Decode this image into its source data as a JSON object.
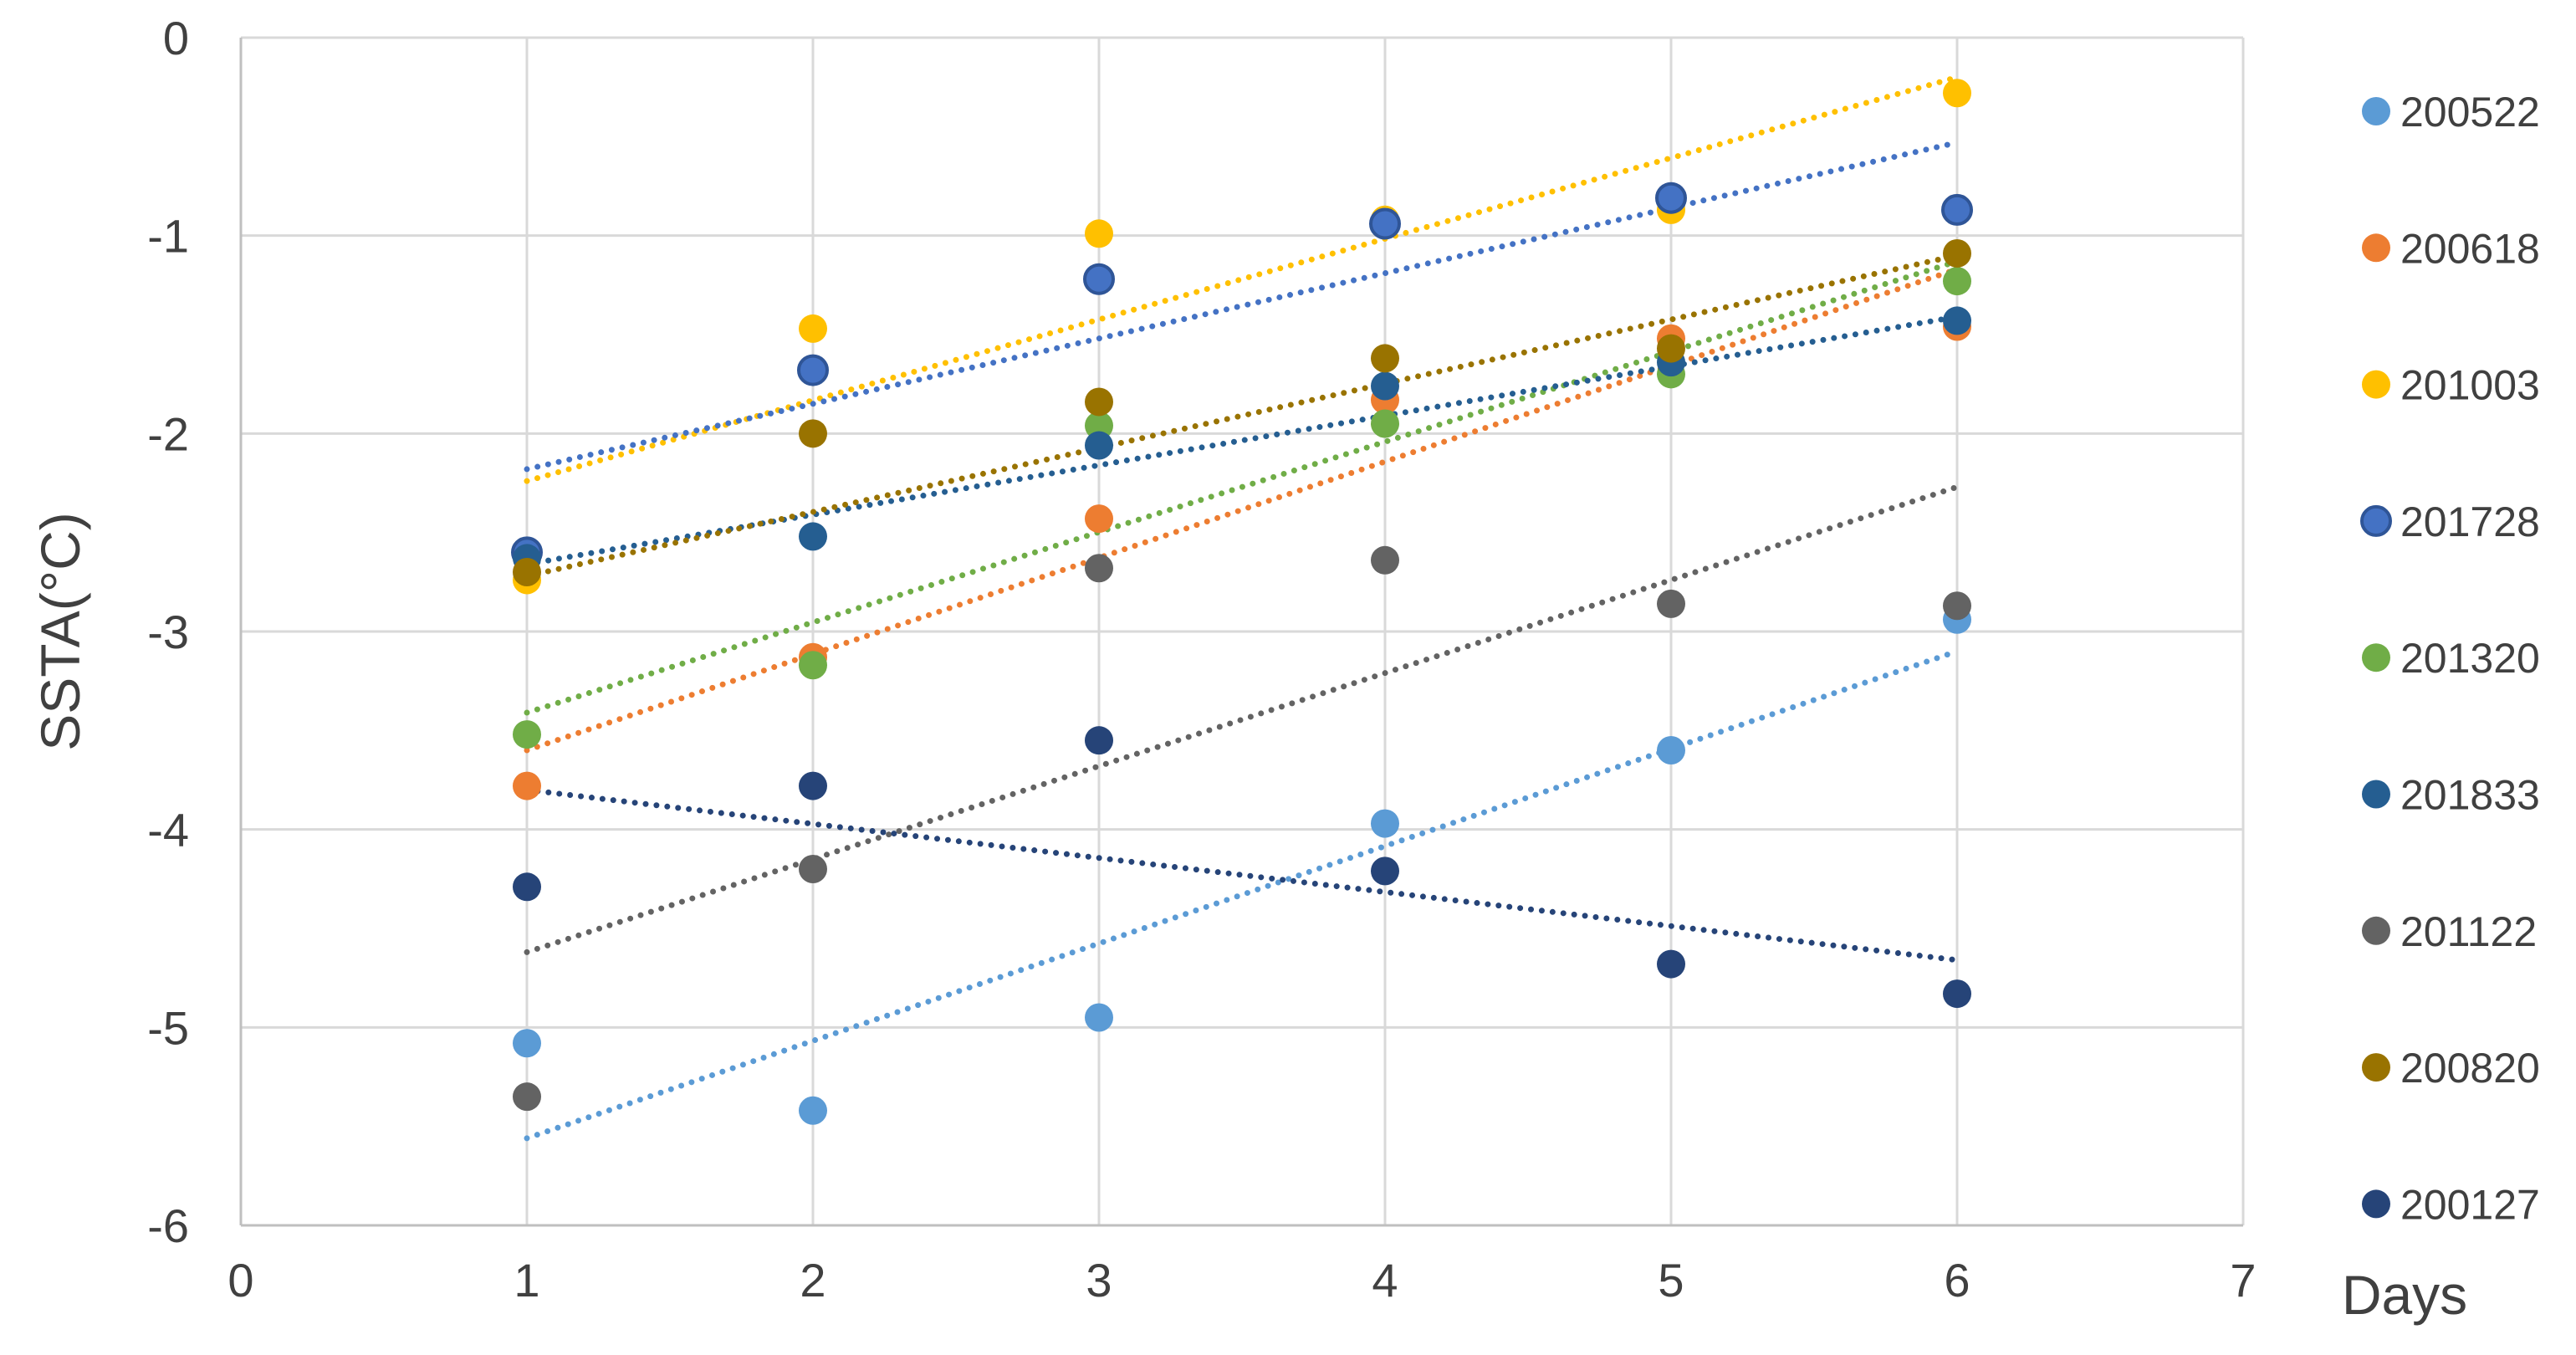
{
  "chart_data": {
    "type": "scatter",
    "title": "",
    "xlabel": "Days",
    "ylabel": "SSTA(°C)",
    "xlim": [
      0,
      7
    ],
    "ylim": [
      -6,
      0
    ],
    "xticks": [
      0,
      1,
      2,
      3,
      4,
      5,
      6,
      7
    ],
    "yticks": [
      0,
      -1,
      -2,
      -3,
      -4,
      -5,
      -6
    ],
    "grid": true,
    "trendline_style": "dotted linear",
    "legend_position": "right",
    "x": [
      1,
      2,
      3,
      4,
      5,
      6
    ],
    "series": [
      {
        "name": "200522",
        "color": "#5B9BD5",
        "values": [
          -5.08,
          -5.42,
          -4.95,
          -3.97,
          -3.6,
          -2.94
        ],
        "trend": [
          -5.56,
          -3.1
        ]
      },
      {
        "name": "200618",
        "color": "#ED7D31",
        "values": [
          -3.78,
          -3.13,
          -2.43,
          -1.83,
          -1.52,
          -1.46
        ],
        "trend": [
          -3.6,
          -1.17
        ]
      },
      {
        "name": "201003",
        "color": "#FFC000",
        "values": [
          -2.74,
          -1.47,
          -0.99,
          -0.92,
          -0.87,
          -0.28
        ],
        "trend": [
          -2.24,
          -0.2
        ]
      },
      {
        "name": "201728",
        "color": "#4472C4",
        "values": [
          -2.6,
          -1.68,
          -1.22,
          -0.94,
          -0.81,
          -0.87
        ],
        "trend": [
          -2.18,
          -0.53
        ]
      },
      {
        "name": "201320",
        "color": "#70AD47",
        "values": [
          -3.52,
          -3.17,
          -1.96,
          -1.95,
          -1.7,
          -1.23
        ],
        "trend": [
          -3.41,
          -1.13
        ]
      },
      {
        "name": "201833",
        "color": "#255E91",
        "values": [
          -2.63,
          -2.52,
          -2.06,
          -1.76,
          -1.64,
          -1.43
        ],
        "trend": [
          -2.66,
          -1.41
        ]
      },
      {
        "name": "201122",
        "color": "#636363",
        "values": [
          -5.35,
          -4.2,
          -2.68,
          -2.64,
          -2.86,
          -2.87
        ],
        "trend": [
          -4.62,
          -2.27
        ]
      },
      {
        "name": "200820",
        "color": "#997300",
        "values": [
          -2.7,
          -2.0,
          -1.84,
          -1.62,
          -1.57,
          -1.09
        ],
        "trend": [
          -2.72,
          -1.1
        ]
      },
      {
        "name": "200127",
        "color": "#264478",
        "values": [
          -4.29,
          -3.78,
          -3.55,
          -4.21,
          -4.68,
          -4.83
        ],
        "trend": [
          -3.8,
          -4.66
        ]
      }
    ]
  }
}
